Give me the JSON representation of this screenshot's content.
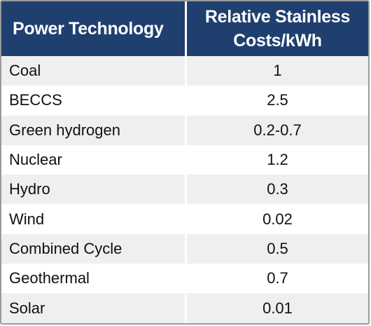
{
  "table": {
    "headers": {
      "technology": "Power Technology",
      "cost_line1": "Relative Stainless",
      "cost_line2": "Costs/kWh"
    },
    "rows": [
      {
        "technology": "Coal",
        "cost": "1"
      },
      {
        "technology": "BECCS",
        "cost": "2.5"
      },
      {
        "technology": "Green hydrogen",
        "cost": "0.2-0.7"
      },
      {
        "technology": "Nuclear",
        "cost": "1.2"
      },
      {
        "technology": "Hydro",
        "cost": "0.3"
      },
      {
        "technology": "Wind",
        "cost": "0.02"
      },
      {
        "technology": "Combined Cycle",
        "cost": "0.5"
      },
      {
        "technology": "Geothermal",
        "cost": "0.7"
      },
      {
        "technology": "Solar",
        "cost": "0.01"
      }
    ]
  },
  "colors": {
    "header_bg": "#1f3f6f",
    "header_text": "#ffffff",
    "row_shade": "#efefef",
    "row_plain": "#ffffff",
    "border": "#9a9a9a"
  }
}
